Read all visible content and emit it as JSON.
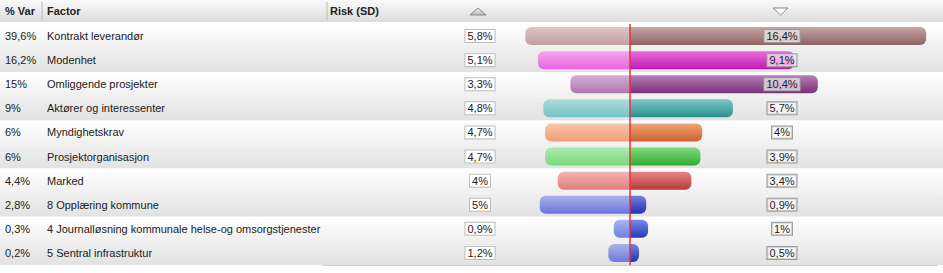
{
  "chart_data": {
    "type": "bar",
    "orientation": "horizontal",
    "columns": [
      "% Var",
      "Factor",
      "Risk (SD)"
    ],
    "categories": [
      "Kontrakt leverandør",
      "Modenhet",
      "Omliggende prosjekter",
      "Aktører og interessenter",
      "Myndighetskrav",
      "Prosjektorganisasjon",
      "Marked",
      "8 Opplæring kommune",
      "4 Journalløsning kommunale helse-og omsorgstjenester",
      "5 Sentral infrastruktur"
    ],
    "variance": [
      "39,6%",
      "16,2%",
      "15%",
      "9%",
      "6%",
      "6%",
      "4,4%",
      "2,8%",
      "0,3%",
      "0,2%"
    ],
    "colors": [
      "#a87474",
      "#e020d0",
      "#8e3a8e",
      "#35a8a8",
      "#ea7434",
      "#3cc83c",
      "#d84545",
      "#2a3ad0",
      "#2a48d8",
      "#2a40d0"
    ],
    "series": [
      {
        "values": [
          5.8,
          5.1,
          3.3,
          4.8,
          4.7,
          4.7,
          4,
          5,
          0.9,
          1.2
        ],
        "value_labels": [
          "5,8%",
          "5,1%",
          "3,3%",
          "4,8%",
          "4,7%",
          "4,7%",
          "4%",
          "5%",
          "0,9%",
          "1,2%"
        ]
      },
      {
        "values": [
          16.4,
          9.1,
          10.4,
          5.7,
          4,
          3.9,
          3.4,
          0.9,
          1,
          0.5
        ],
        "value_labels": [
          "16,4%",
          "9,1%",
          "10,4%",
          "5,7%",
          "4%",
          "3,9%",
          "3,4%",
          "0,9%",
          "1%",
          "0,5%"
        ]
      }
    ],
    "xlim": [
      0,
      17
    ],
    "tick_labels": false,
    "data_labels": true,
    "grid": false
  }
}
